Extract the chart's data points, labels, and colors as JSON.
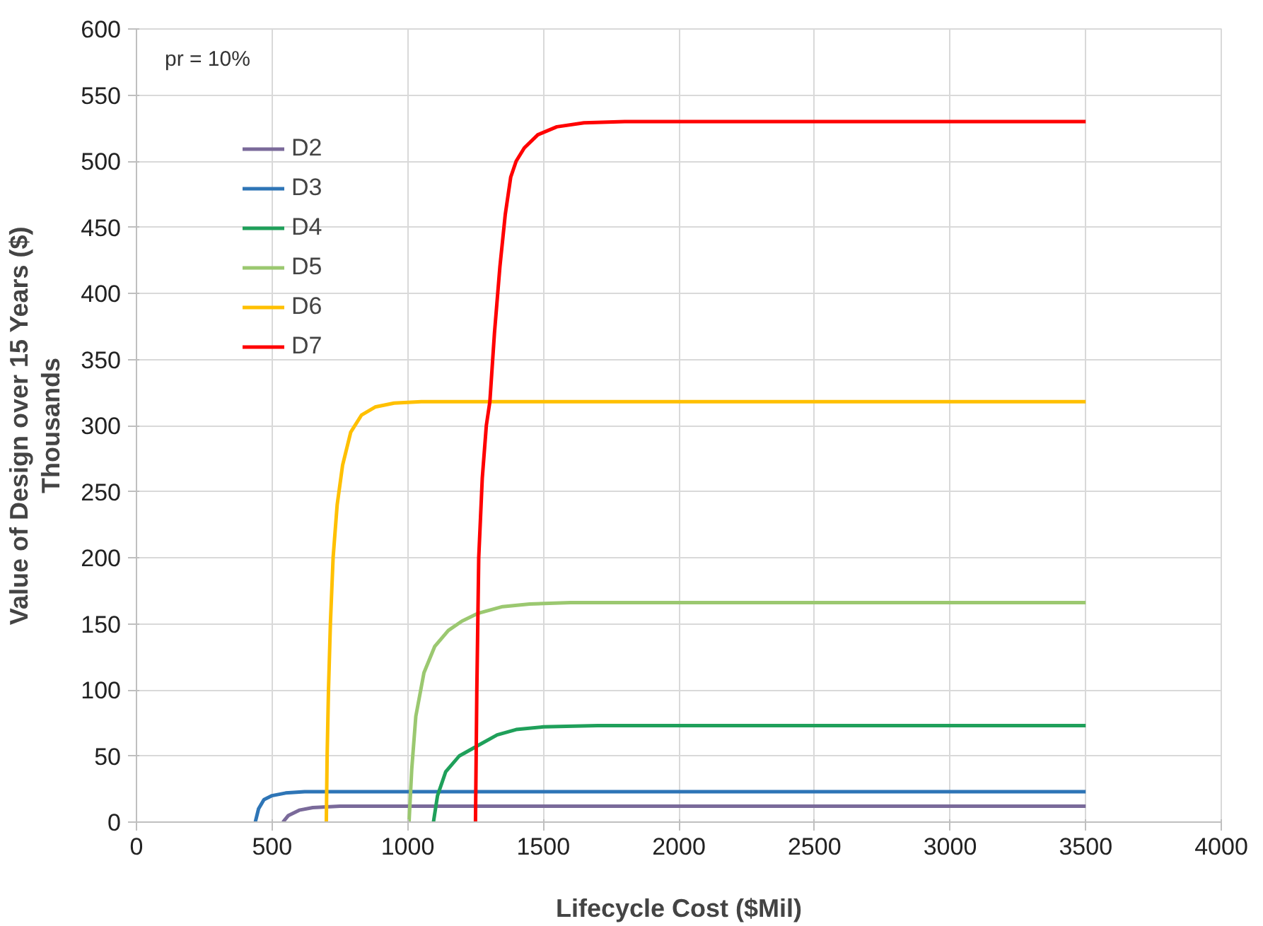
{
  "chart_data": {
    "type": "line",
    "xlabel": "Lifecycle Cost ($Mil)",
    "ylabel": "Value of Design over 15 Years ($)",
    "annotations": [
      "Thousands",
      "pr = 10%"
    ],
    "xlim": [
      0,
      4000
    ],
    "xticks": [
      0,
      500,
      1000,
      1500,
      2000,
      2500,
      3000,
      3500,
      4000
    ],
    "ylim": [
      0,
      600
    ],
    "yticks": [
      0,
      50,
      100,
      150,
      200,
      250,
      300,
      350,
      400,
      450,
      500,
      550,
      600
    ],
    "grid": true,
    "legend": "top left",
    "marker": "none",
    "line_style": "solid",
    "series": [
      {
        "name": "D2",
        "color": "#7a6a9a",
        "x": [
          540,
          560,
          600,
          650,
          750,
          3500
        ],
        "values": [
          0,
          5,
          9,
          11,
          12,
          12
        ]
      },
      {
        "name": "D3",
        "color": "#2e75b6",
        "x": [
          438,
          450,
          470,
          500,
          550,
          620,
          3500
        ],
        "values": [
          0,
          10,
          17,
          20,
          22,
          23,
          23
        ]
      },
      {
        "name": "D4",
        "color": "#1fa05a",
        "x": [
          1095,
          1110,
          1140,
          1190,
          1260,
          1330,
          1400,
          1500,
          1700,
          3500
        ],
        "values": [
          0,
          20,
          38,
          50,
          58,
          66,
          70,
          72,
          73,
          73
        ]
      },
      {
        "name": "D5",
        "color": "#9bc870",
        "x": [
          1005,
          1015,
          1030,
          1060,
          1100,
          1150,
          1200,
          1260,
          1350,
          1450,
          1600,
          3500
        ],
        "values": [
          0,
          40,
          80,
          113,
          133,
          145,
          152,
          158,
          163,
          165,
          166,
          166
        ]
      },
      {
        "name": "D6",
        "color": "#ffc000",
        "x": [
          700,
          703,
          708,
          715,
          725,
          740,
          760,
          790,
          830,
          880,
          950,
          1050,
          3500
        ],
        "values": [
          0,
          50,
          100,
          150,
          200,
          240,
          270,
          295,
          308,
          314,
          317,
          318,
          318
        ]
      },
      {
        "name": "D7",
        "color": "#ff0000",
        "x": [
          1250,
          1255,
          1262,
          1275,
          1290,
          1303,
          1320,
          1340,
          1360,
          1380,
          1400,
          1430,
          1480,
          1550,
          1650,
          1800,
          3500
        ],
        "values": [
          0,
          100,
          200,
          260,
          300,
          318,
          370,
          420,
          460,
          488,
          500,
          510,
          520,
          526,
          529,
          530,
          530
        ]
      }
    ]
  }
}
